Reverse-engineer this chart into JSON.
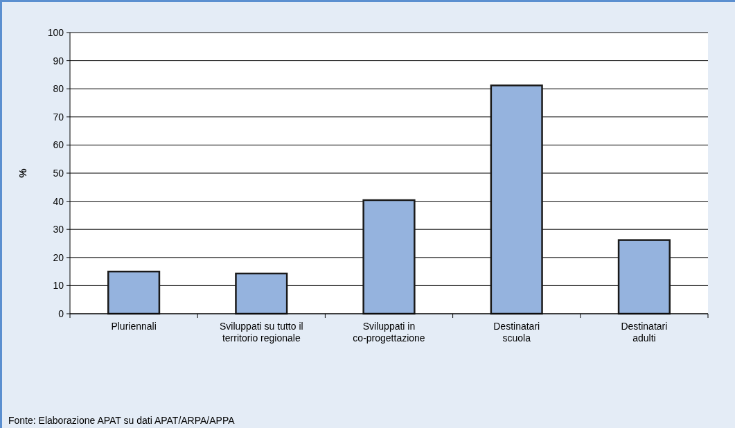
{
  "chart_data": {
    "type": "bar",
    "ylabel": "%",
    "categories": [
      "Pluriennali",
      "Sviluppati su tutto il territorio regionale",
      "Sviluppati in co-progettazione",
      "Destinatari scuola",
      "Destinatari adulti"
    ],
    "values": [
      15,
      14.3,
      40.4,
      81.2,
      26.2
    ],
    "color": "#95b3de",
    "ylim": [
      0,
      100
    ],
    "yticks": [
      0,
      10,
      20,
      30,
      40,
      50,
      60,
      70,
      80,
      90,
      100
    ],
    "grid": "y",
    "annotations": [
      "Fonte: Elaborazione APAT su dati APAT/ARPA/APPA"
    ]
  }
}
